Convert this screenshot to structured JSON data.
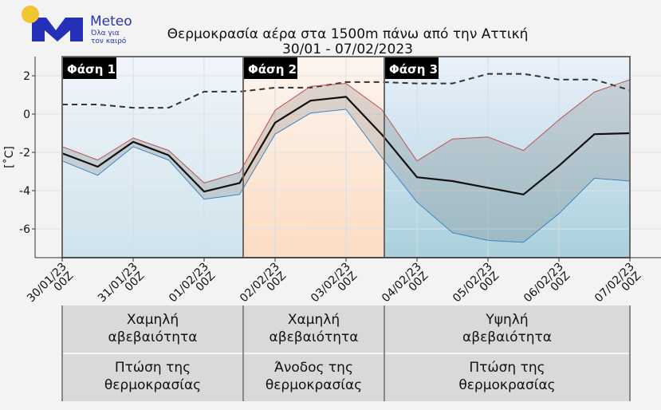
{
  "logo": {
    "name": "Meteo",
    "tagline_1": "Όλα για",
    "tagline_2": "τον καιρό",
    "colors": {
      "blue": "#2430b8",
      "sun": "#f2c631"
    }
  },
  "chart_data": {
    "type": "line",
    "title": "Θερμοκρασία αέρα στα 1500m πάνω από την Αττική",
    "subtitle": "30/01 - 07/02/2023",
    "ylabel": "[˚C]",
    "ylim": [
      -7.5,
      3
    ],
    "yticks": [
      2,
      0,
      -2,
      -4,
      -6
    ],
    "grid": true,
    "x": [
      "30/01/23 00Z",
      "30/01/23 12Z",
      "31/01/23 00Z",
      "31/01/23 12Z",
      "01/02/23 00Z",
      "01/02/23 12Z",
      "02/02/23 00Z",
      "02/02/23 12Z",
      "03/02/23 00Z",
      "03/02/23 12Z",
      "04/02/23 00Z",
      "04/02/23 12Z",
      "05/02/23 00Z",
      "05/02/23 12Z",
      "06/02/23 00Z",
      "06/02/23 12Z",
      "07/02/23 00Z"
    ],
    "xtick_labels": [
      {
        "date": "30/01/23",
        "hour": "00Z"
      },
      {
        "date": "31/01/23",
        "hour": "00Z"
      },
      {
        "date": "01/02/23",
        "hour": "00Z"
      },
      {
        "date": "02/02/23",
        "hour": "00Z"
      },
      {
        "date": "03/02/23",
        "hour": "00Z"
      },
      {
        "date": "04/02/23",
        "hour": "00Z"
      },
      {
        "date": "05/02/23",
        "hour": "00Z"
      },
      {
        "date": "06/02/23",
        "hour": "00Z"
      },
      {
        "date": "07/02/23",
        "hour": "00Z"
      }
    ],
    "series": [
      {
        "role": "mean",
        "color": "#111111",
        "values": [
          -2.05,
          -2.75,
          -1.45,
          -2.15,
          -4.05,
          -3.6,
          -0.45,
          0.7,
          0.9,
          -1.05,
          -3.3,
          -3.5,
          -3.85,
          -4.2,
          -2.7,
          -1.05,
          -1.0
        ]
      },
      {
        "role": "max",
        "color": "#c0504d",
        "values": [
          -1.7,
          -2.4,
          -1.25,
          -1.9,
          -3.6,
          -3.05,
          0.2,
          1.45,
          1.6,
          0.25,
          -2.45,
          -1.3,
          -1.2,
          -1.9,
          -0.3,
          1.15,
          1.8
        ]
      },
      {
        "role": "min",
        "color": "#3d85c6",
        "values": [
          -2.45,
          -3.2,
          -1.7,
          -2.4,
          -4.45,
          -4.2,
          -1.05,
          0.05,
          0.25,
          -2.25,
          -4.6,
          -6.2,
          -6.6,
          -6.7,
          -5.2,
          -3.35,
          -3.5
        ]
      },
      {
        "role": "climatology",
        "style": "dashed",
        "color": "#333333",
        "values": [
          0.5,
          0.5,
          0.33,
          0.33,
          1.17,
          1.17,
          1.38,
          1.38,
          1.67,
          1.67,
          1.6,
          1.6,
          2.1,
          2.1,
          1.8,
          1.8,
          1.25
        ]
      }
    ],
    "phases": [
      {
        "label": "Φάση 1",
        "color": "#cfe3ec",
        "uncertainty": [
          "Χαμηλή",
          "αβεβαιότητα"
        ],
        "trend": [
          "Πτώση της",
          "θερμοκρασίας"
        ]
      },
      {
        "label": "Φάση 2",
        "color": "#fbdcc3",
        "uncertainty": [
          "Χαμηλή",
          "αβεβαιότητα"
        ],
        "trend": [
          "Άνοδος της",
          "θερμοκρασίας"
        ]
      },
      {
        "label": "Φάση 3",
        "color": "#b5d6e0",
        "uncertainty": [
          "Υψηλή",
          "αβεβαιότητα"
        ],
        "trend": [
          "Πτώση της",
          "θερμοκρασίας"
        ]
      }
    ]
  }
}
